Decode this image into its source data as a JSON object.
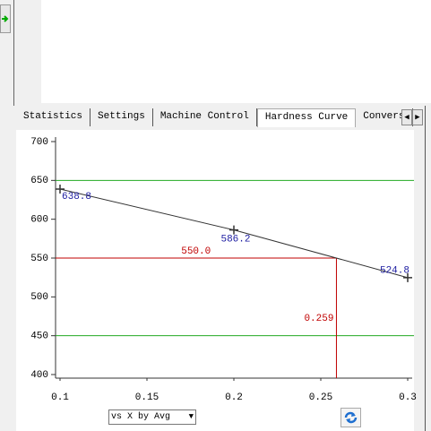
{
  "tabs": [
    "Statistics",
    "Settings",
    "Machine Control",
    "Hardness Curve",
    "Convers"
  ],
  "selected_tab": 3,
  "chart_data": {
    "type": "line",
    "x": [
      0.1,
      0.2,
      0.3
    ],
    "series": [
      {
        "values": [
          638.8,
          586.2,
          524.8
        ],
        "value_labels": [
          "638.8",
          "586.2",
          "524.8"
        ],
        "color": "#333333",
        "label_color": "#1a1aa0"
      }
    ],
    "xlim": [
      0.1,
      0.3
    ],
    "xticks": [
      0.1,
      0.15,
      0.2,
      0.25,
      0.3
    ],
    "ylim": [
      400,
      700
    ],
    "yticks": [
      400,
      450,
      500,
      550,
      600,
      650,
      700
    ],
    "hlines": [
      {
        "value": 650,
        "color": "#22aa22"
      },
      {
        "value": 450,
        "color": "#22aa22"
      }
    ],
    "target": {
      "y": 550,
      "x": 0.259,
      "y_label": "550.0",
      "x_label": "0.259",
      "color": "#c00000"
    }
  },
  "dropdown": "vs X by Avg"
}
